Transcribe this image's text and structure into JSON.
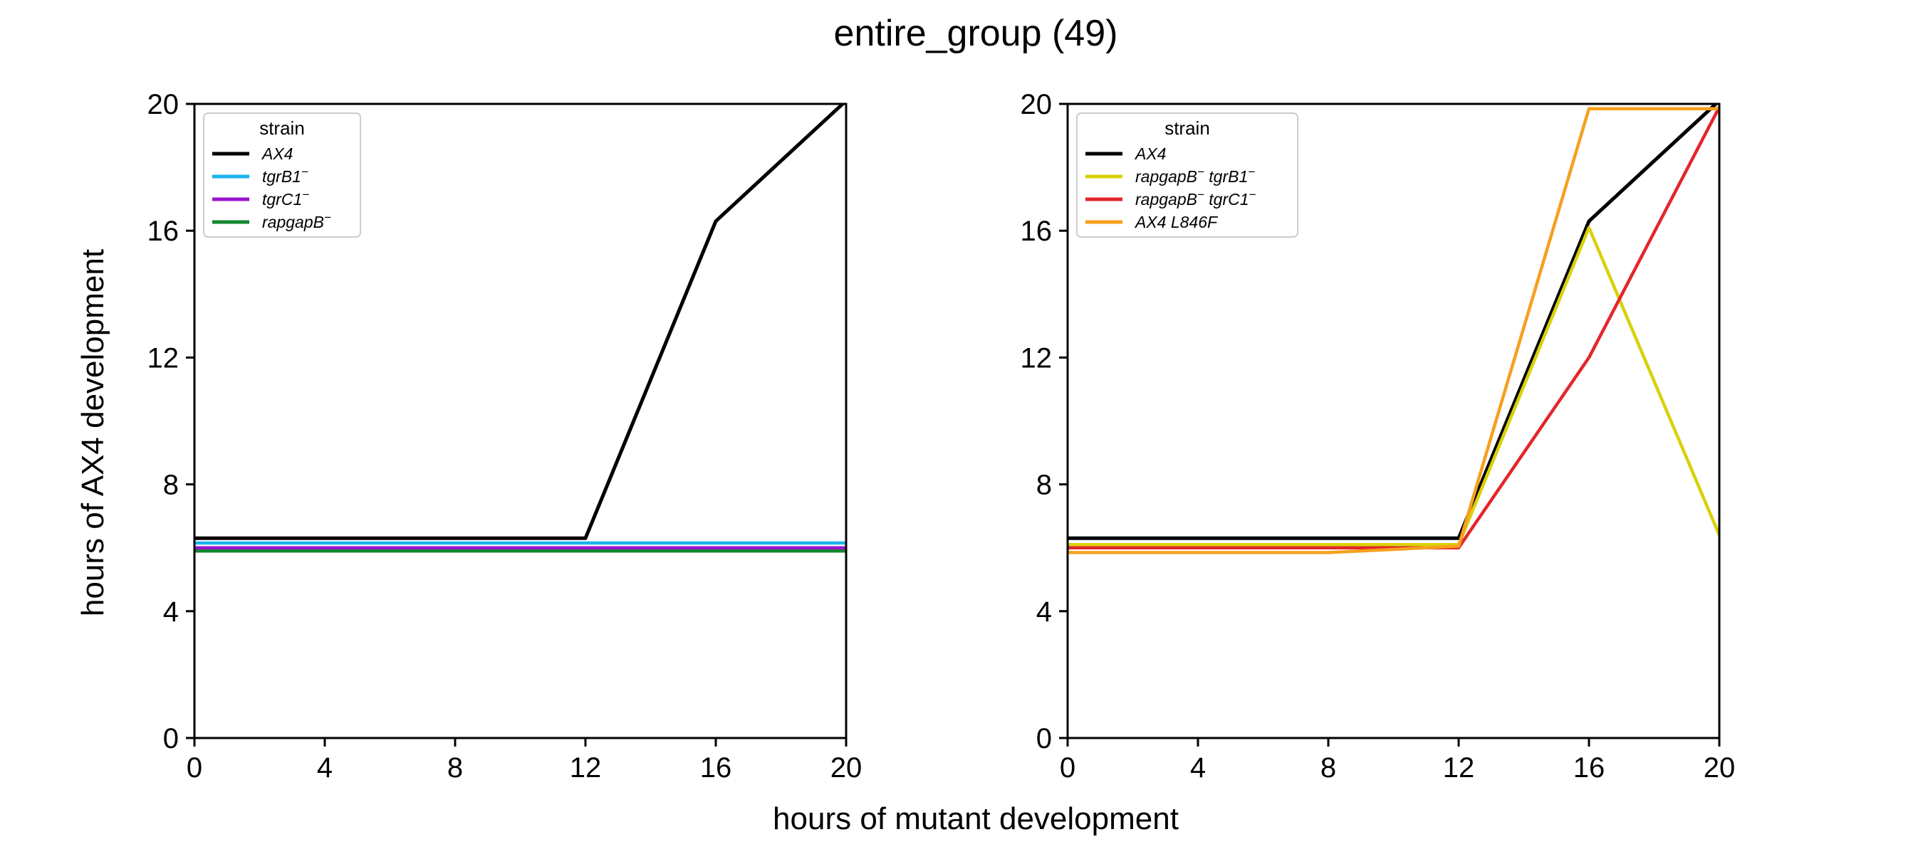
{
  "figure": {
    "title": "entire_group (49)",
    "xlabel": "hours of mutant development",
    "ylabel": "hours of AX4 development"
  },
  "chart_data": [
    {
      "type": "line",
      "xlim": [
        0,
        20
      ],
      "ylim": [
        0,
        20
      ],
      "x_ticks": [
        "0",
        "4",
        "8",
        "12",
        "16",
        "20"
      ],
      "y_ticks": [
        "0",
        "4",
        "8",
        "12",
        "16",
        "20"
      ],
      "grid": false,
      "legend": {
        "title": "strain",
        "placement": "top-left"
      },
      "series": [
        {
          "name": "AX4",
          "legend_html": "AX4",
          "color": "#000000",
          "x": [
            0,
            4,
            8,
            12,
            16,
            20
          ],
          "y": [
            6.3,
            6.3,
            6.3,
            6.3,
            16.3,
            20.1
          ]
        },
        {
          "name": "tgrB1−",
          "legend_html": "tgrB1<tspan baseline-shift=\"super\" font-size=\"17\">−</tspan>",
          "color": "#1ab2f0",
          "x": [
            0,
            4,
            8,
            12,
            16,
            20
          ],
          "y": [
            6.15,
            6.15,
            6.15,
            6.15,
            6.15,
            6.15
          ]
        },
        {
          "name": "tgrC1−",
          "legend_html": "tgrC1<tspan baseline-shift=\"super\" font-size=\"17\">−</tspan>",
          "color": "#9b12d0",
          "x": [
            0,
            4,
            8,
            12,
            16,
            20
          ],
          "y": [
            6.0,
            6.0,
            6.0,
            6.0,
            6.0,
            6.0
          ]
        },
        {
          "name": "rapgapB−",
          "legend_html": "rapgapB<tspan baseline-shift=\"super\" font-size=\"17\">−</tspan>",
          "color": "#13862f",
          "x": [
            0,
            4,
            8,
            12,
            16,
            20
          ],
          "y": [
            5.9,
            5.9,
            5.9,
            5.9,
            5.9,
            5.9
          ]
        }
      ]
    },
    {
      "type": "line",
      "xlim": [
        0,
        20
      ],
      "ylim": [
        0,
        20
      ],
      "x_ticks": [
        "0",
        "4",
        "8",
        "12",
        "16",
        "20"
      ],
      "y_ticks": [
        "0",
        "4",
        "8",
        "12",
        "16",
        "20"
      ],
      "grid": false,
      "legend": {
        "title": "strain",
        "placement": "top-left"
      },
      "series": [
        {
          "name": "AX4",
          "legend_html": "AX4",
          "color": "#000000",
          "x": [
            0,
            4,
            8,
            12,
            16,
            20
          ],
          "y": [
            6.3,
            6.3,
            6.3,
            6.3,
            16.3,
            20.1
          ]
        },
        {
          "name": "rapgapB−tgrB1−",
          "legend_html": "rapgapB<tspan baseline-shift=\"super\" font-size=\"17\">−</tspan><tspan baseline-shift=\"0\"> tgrB1</tspan><tspan baseline-shift=\"super\" font-size=\"17\">−</tspan>",
          "color": "#d9d10a",
          "x": [
            0,
            4,
            8,
            12,
            16,
            20
          ],
          "y": [
            6.1,
            6.1,
            6.1,
            6.1,
            16.1,
            6.4
          ]
        },
        {
          "name": "rapgapB−tgrC1−",
          "legend_html": "rapgapB<tspan baseline-shift=\"super\" font-size=\"17\">−</tspan><tspan baseline-shift=\"0\"> tgrC1</tspan><tspan baseline-shift=\"super\" font-size=\"17\">−</tspan>",
          "color": "#e3262a",
          "x": [
            0,
            4,
            8,
            12,
            16,
            20
          ],
          "y": [
            6.0,
            6.0,
            6.0,
            6.0,
            12.0,
            19.9
          ]
        },
        {
          "name": "AX4 L846F",
          "legend_html": "AX4 L846F",
          "color": "#f5a01e",
          "x": [
            0,
            4,
            8,
            12,
            16,
            20
          ],
          "y": [
            5.85,
            5.85,
            5.85,
            6.05,
            19.85,
            19.85
          ]
        }
      ]
    }
  ]
}
